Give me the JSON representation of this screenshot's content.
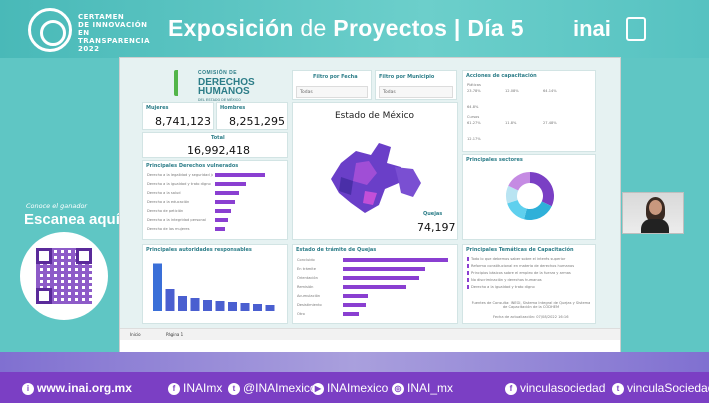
{
  "event": {
    "lines": [
      "CERTAMEN",
      "DE INNOVACIÓN",
      "EN",
      "TRANSPARENCIA",
      "2022"
    ],
    "title_a": "Exposición",
    "title_b": "de",
    "title_c": "Proyectos | Día 5",
    "logo": "inai"
  },
  "promo": {
    "small": "Conoce el ganador",
    "big": "Escanea aquí"
  },
  "dashboard": {
    "org": {
      "l1": "COMISIÓN DE",
      "l2": "DERECHOS",
      "l3": "HUMANOS",
      "l4": "DEL ESTADO DE MÉXICO"
    },
    "filters": [
      {
        "label": "Filtro por Fecha",
        "value": "Todas"
      },
      {
        "label": "Filtro por Municipio",
        "value": "Todas"
      }
    ],
    "women_label": "Mujeres",
    "women_value": "8,741,123",
    "men_label": "Hombres",
    "men_value": "8,251,295",
    "total_label": "Total",
    "total_value": "16,992,418",
    "map_title": "Estado de México",
    "quejas_label": "Quejas",
    "quejas_value": "74,197",
    "rights_title": "Principales Derechos vulnerados",
    "rights": [
      {
        "label": "Derecho a la legalidad y seguridad jurídica",
        "value": 100
      },
      {
        "label": "Derecho a la igualdad y trato digno",
        "value": 62
      },
      {
        "label": "Derecho a la salud",
        "value": 48
      },
      {
        "label": "Derecho a la educación",
        "value": 40
      },
      {
        "label": "Derecho de petición",
        "value": 32
      },
      {
        "label": "Derecho a la integridad personal",
        "value": 26
      },
      {
        "label": "Derecho de las mujeres",
        "value": 20
      }
    ],
    "auth_title": "Principales autoridades responsables",
    "auth_bars": [
      95,
      44,
      30,
      26,
      22,
      20,
      18,
      16,
      14,
      12
    ],
    "status_title": "Estado de trámite de Quejas",
    "status_bars": [
      {
        "label": "Concluido",
        "value": 100
      },
      {
        "label": "En trámite",
        "value": 78
      },
      {
        "label": "Orientación",
        "value": 72
      },
      {
        "label": "Remisión",
        "value": 60
      },
      {
        "label": "Acumulación",
        "value": 24
      },
      {
        "label": "Desistimiento",
        "value": 22
      },
      {
        "label": "Otro",
        "value": 15
      }
    ],
    "cap_title": "Acciones de capacitación",
    "cap_rows": [
      {
        "label": "Pláticas",
        "v1": "23.78%",
        "v2": "12.08%",
        "v3": "64.14%"
      },
      {
        "label": "",
        "v1": "64.8%",
        "v2": "",
        "v3": ""
      },
      {
        "label": "Cursos",
        "v1": "61.27%",
        "v2": "11.8%",
        "v3": "27.48%"
      },
      {
        "label": "",
        "v1": "12.17%",
        "v2": "",
        "v3": ""
      }
    ],
    "sectors_title": "Principales sectores",
    "donut_segments": [
      {
        "color": "#7a3fc4",
        "value": 32
      },
      {
        "color": "#2fb0d9",
        "value": 22
      },
      {
        "color": "#5fd0ee",
        "value": 16
      },
      {
        "color": "#b9e4f2",
        "value": 12
      },
      {
        "color": "#c58be3",
        "value": 18
      }
    ],
    "topics_title": "Principales Temáticas de Capacitación",
    "topics": [
      "Todo lo que debemos saber sobre el interés superior",
      "Reforma constitucional en materia de derechos humanos",
      "Principios básicos sobre el empleo de la fuerza y armas",
      "No discriminación y derechos humanos",
      "Derecho a la igualdad y trato digno"
    ],
    "source_note": "Fuentes de Consulta: INEGI, Sistema Integral de Quejas y Sistema de Capacitación de la CODHEM",
    "update_note": "Fecha de actualización: 07/08/2022 16:16",
    "tab_labels": [
      "Inicio",
      "Página 1"
    ]
  },
  "footer": {
    "web": "www.inai.org.mx",
    "fb": "INAImx",
    "tw": "@INAImexico",
    "yt": "INAImexico",
    "ig": "INAI_mx",
    "vinc_fb": "vinculasociedad",
    "vinc_tw": "vinculaSociedad"
  }
}
